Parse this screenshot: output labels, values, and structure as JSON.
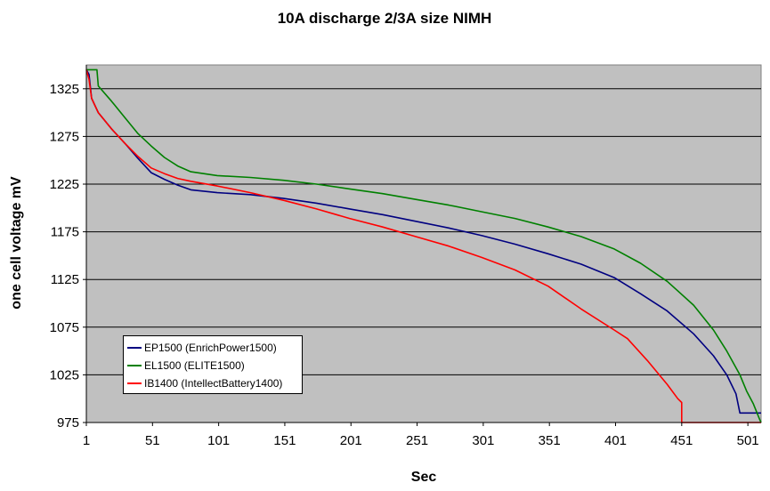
{
  "chart_data": {
    "type": "line",
    "title": "10A discharge 2/3A size NIMH",
    "xlabel": "Sec",
    "ylabel": "one cell voltage mV",
    "xlim": [
      1,
      511
    ],
    "ylim": [
      975,
      1350
    ],
    "x_ticks": [
      "1",
      "51",
      "101",
      "151",
      "201",
      "251",
      "301",
      "351",
      "401",
      "451",
      "501"
    ],
    "y_ticks": [
      "975",
      "1025",
      "1075",
      "1125",
      "1175",
      "1225",
      "1275",
      "1325"
    ],
    "grid": "horizontal",
    "plot_background": "#c0c0c0",
    "legend_placement": "bottom-left",
    "series": [
      {
        "name": "EP1500 (EnrichPower1500)",
        "color": "#000080",
        "points": [
          [
            1,
            1345
          ],
          [
            3,
            1340
          ],
          [
            5,
            1315
          ],
          [
            10,
            1300
          ],
          [
            20,
            1283
          ],
          [
            30,
            1268
          ],
          [
            40,
            1252
          ],
          [
            50,
            1237
          ],
          [
            60,
            1230
          ],
          [
            70,
            1224
          ],
          [
            80,
            1219
          ],
          [
            100,
            1216
          ],
          [
            125,
            1214
          ],
          [
            150,
            1210
          ],
          [
            175,
            1205
          ],
          [
            200,
            1199
          ],
          [
            225,
            1193
          ],
          [
            250,
            1186
          ],
          [
            275,
            1179
          ],
          [
            300,
            1171
          ],
          [
            325,
            1162
          ],
          [
            350,
            1152
          ],
          [
            375,
            1141
          ],
          [
            400,
            1127
          ],
          [
            420,
            1110
          ],
          [
            440,
            1092
          ],
          [
            460,
            1068
          ],
          [
            475,
            1045
          ],
          [
            485,
            1025
          ],
          [
            492,
            1005
          ],
          [
            495,
            985
          ],
          [
            505,
            985
          ],
          [
            511,
            985
          ]
        ]
      },
      {
        "name": "EL1500 (ELITE1500)",
        "color": "#008000",
        "points": [
          [
            1,
            1345
          ],
          [
            9,
            1345
          ],
          [
            10,
            1328
          ],
          [
            20,
            1312
          ],
          [
            30,
            1295
          ],
          [
            40,
            1278
          ],
          [
            50,
            1265
          ],
          [
            60,
            1253
          ],
          [
            70,
            1244
          ],
          [
            80,
            1238
          ],
          [
            100,
            1234
          ],
          [
            125,
            1232
          ],
          [
            150,
            1229
          ],
          [
            175,
            1225
          ],
          [
            200,
            1220
          ],
          [
            225,
            1215
          ],
          [
            250,
            1209
          ],
          [
            275,
            1203
          ],
          [
            300,
            1196
          ],
          [
            325,
            1189
          ],
          [
            350,
            1180
          ],
          [
            375,
            1170
          ],
          [
            400,
            1157
          ],
          [
            420,
            1142
          ],
          [
            440,
            1123
          ],
          [
            460,
            1098
          ],
          [
            475,
            1072
          ],
          [
            485,
            1050
          ],
          [
            495,
            1025
          ],
          [
            500,
            1008
          ],
          [
            505,
            995
          ],
          [
            510,
            978
          ],
          [
            511,
            975
          ]
        ]
      },
      {
        "name": "IB1400 (IntellectBattery1400)",
        "color": "#ff0000",
        "points": [
          [
            1,
            1345
          ],
          [
            3,
            1335
          ],
          [
            5,
            1315
          ],
          [
            10,
            1300
          ],
          [
            20,
            1283
          ],
          [
            30,
            1268
          ],
          [
            40,
            1254
          ],
          [
            50,
            1242
          ],
          [
            60,
            1236
          ],
          [
            70,
            1231
          ],
          [
            80,
            1228
          ],
          [
            100,
            1223
          ],
          [
            125,
            1216
          ],
          [
            150,
            1208
          ],
          [
            175,
            1199
          ],
          [
            200,
            1189
          ],
          [
            225,
            1180
          ],
          [
            250,
            1170
          ],
          [
            275,
            1160
          ],
          [
            300,
            1148
          ],
          [
            325,
            1135
          ],
          [
            350,
            1118
          ],
          [
            375,
            1094
          ],
          [
            400,
            1072
          ],
          [
            410,
            1063
          ],
          [
            425,
            1040
          ],
          [
            440,
            1015
          ],
          [
            448,
            1000
          ],
          [
            451,
            996
          ],
          [
            451,
            975
          ],
          [
            460,
            975
          ],
          [
            511,
            975
          ]
        ]
      }
    ]
  }
}
